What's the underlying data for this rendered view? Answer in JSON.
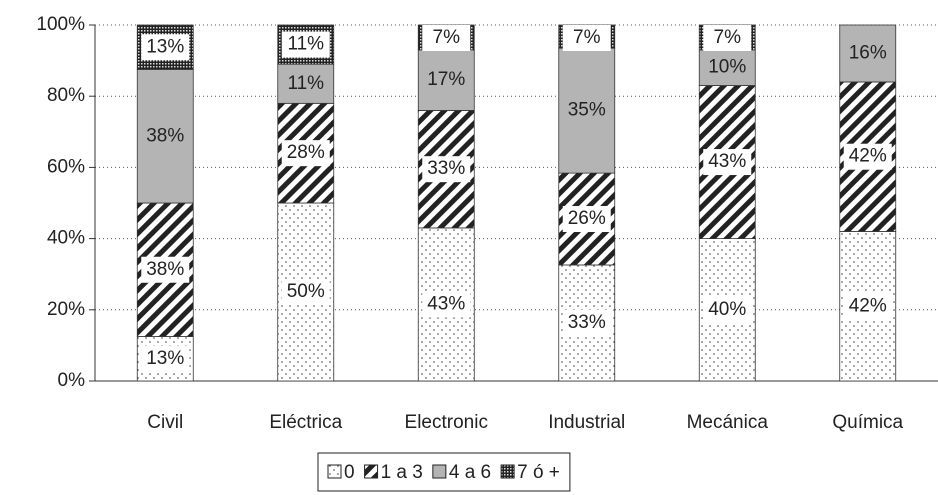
{
  "chart_data": {
    "type": "stacked_bar",
    "categories": [
      "Civil",
      "Eléctrica",
      "Electronic",
      "Industrial",
      "Mecánica",
      "Química"
    ],
    "series": [
      {
        "name": "0",
        "color": "#ffffff",
        "pattern": "dots",
        "values": [
          12.5,
          50,
          43,
          32.6,
          40,
          42
        ],
        "value_labels": [
          "13%",
          "50%",
          "43%",
          "33%",
          "40%",
          "42%"
        ]
      },
      {
        "name": "1 a 3",
        "color": "#222222",
        "pattern": "hatch",
        "values": [
          37.5,
          28,
          33,
          25.8,
          43,
          42
        ],
        "value_labels": [
          "38%",
          "28%",
          "33%",
          "26%",
          "43%",
          "42%"
        ]
      },
      {
        "name": "4 a 6",
        "color": "#b4b4b4",
        "pattern": "solid",
        "values": [
          37.5,
          11,
          17,
          35.1,
          10,
          16
        ],
        "value_labels": [
          "38%",
          "11%",
          "17%",
          "35%",
          "10%",
          "16%"
        ]
      },
      {
        "name": "7 ó +",
        "color": "#333333",
        "pattern": "grid",
        "values": [
          12.5,
          11,
          7,
          6.5,
          7,
          0
        ],
        "value_labels": [
          "13%",
          "11%",
          "7%",
          "7%",
          "7%",
          null
        ]
      }
    ],
    "ylim": [
      0,
      100
    ],
    "yticks": [
      {
        "value": 0,
        "label": "0%"
      },
      {
        "value": 20,
        "label": "20%"
      },
      {
        "value": 40,
        "label": "40%"
      },
      {
        "value": 60,
        "label": "60%"
      },
      {
        "value": 80,
        "label": "80%"
      },
      {
        "value": 100,
        "label": "100%"
      }
    ],
    "grid": true,
    "legend": "bottom"
  }
}
